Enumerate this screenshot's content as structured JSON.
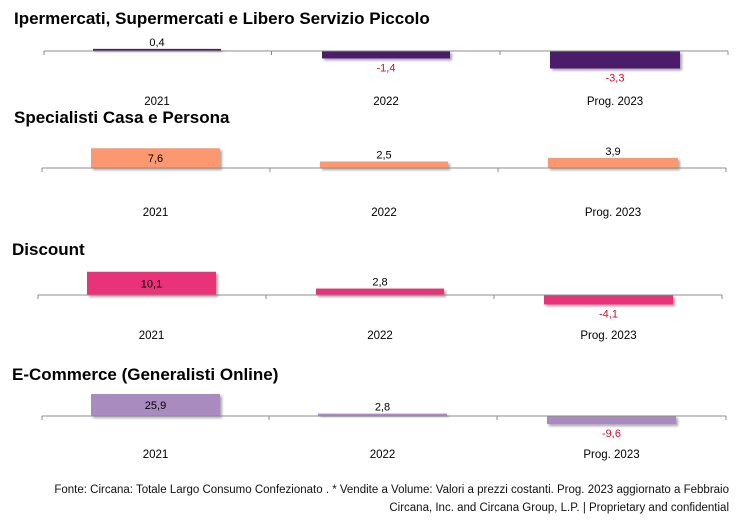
{
  "chart_data": [
    {
      "type": "bar",
      "title": "Ipermercati, Supermercati e Libero Servizio Piccolo",
      "categories": [
        "2021",
        "2022",
        "Prog. 2023"
      ],
      "values": [
        0.4,
        -1.4,
        -3.3
      ],
      "value_labels": [
        "0,4",
        "-1,4",
        "-3,3"
      ],
      "color": "#4b1a6b"
    },
    {
      "type": "bar",
      "title": "Specialisti Casa e Persona",
      "categories": [
        "2021",
        "2022",
        "Prog. 2023"
      ],
      "values": [
        7.6,
        2.5,
        3.9
      ],
      "value_labels": [
        "7,6",
        "2,5",
        "3,9"
      ],
      "color": "#fb9870"
    },
    {
      "type": "bar",
      "title": "Discount",
      "categories": [
        "2021",
        "2022",
        "Prog. 2023"
      ],
      "values": [
        10.1,
        2.8,
        -4.1
      ],
      "value_labels": [
        "10,1",
        "2,8",
        "-4,1"
      ],
      "color": "#e8307a"
    },
    {
      "type": "bar",
      "title": "E-Commerce (Generalisti Online)",
      "categories": [
        "2021",
        "2022",
        "Prog. 2023"
      ],
      "values": [
        25.9,
        2.8,
        -9.6
      ],
      "value_labels": [
        "25,9",
        "2,8",
        "-9,6"
      ],
      "color": "#a98bbf"
    }
  ],
  "colors": {
    "negative_label": "#d0102b",
    "positive_label": "#000000"
  },
  "footer": {
    "source": "Fonte: Circana: Totale Largo Consumo Confezionato . * Vendite a Volume: Valori a prezzi costanti.  Prog. 2023 aggiornato a Febbraio",
    "copyright": "Circana, Inc. and Circana Group, L.P. |  Proprietary and confidential"
  }
}
